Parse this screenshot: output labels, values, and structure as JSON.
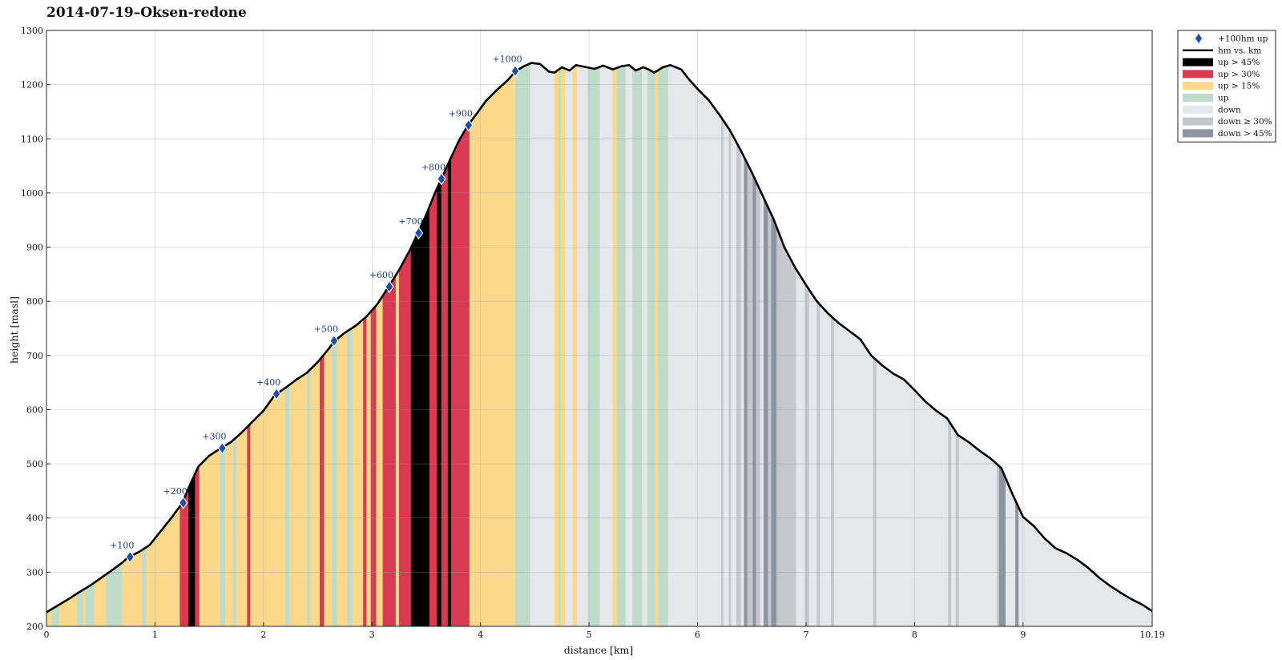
{
  "chart_data": {
    "type": "area",
    "title": "2014-07-19–Oksen-redone",
    "xlabel": "distance [km]",
    "ylabel": "height [masl]",
    "xlim": [
      0,
      10.19
    ],
    "ylim": [
      200,
      1300
    ],
    "x_ticks": [
      "0",
      "1",
      "2",
      "3",
      "4",
      "5",
      "6",
      "7",
      "8",
      "9",
      "10.19"
    ],
    "x_tick_values": [
      0,
      1,
      2,
      3,
      4,
      5,
      6,
      7,
      8,
      9,
      10.19
    ],
    "y_ticks": [
      "200",
      "300",
      "400",
      "500",
      "600",
      "700",
      "800",
      "900",
      "1000",
      "1100",
      "1200",
      "1300"
    ],
    "y_tick_values": [
      200,
      300,
      400,
      500,
      600,
      700,
      800,
      900,
      1000,
      1100,
      1200,
      1300
    ],
    "grid": true,
    "legend_position": "top-right outside",
    "colors": {
      "up45": "#000000",
      "up30": "#d93a52",
      "up15": "#fcd98a",
      "up": "#bfdccb",
      "down": "#e6e7eb",
      "down30": "#c5c7cd",
      "down45": "#8c93a1",
      "line": "#000000",
      "marker": "#1e4ea8",
      "annotation": "#1a3a8a"
    },
    "legend": [
      {
        "key": "marker",
        "label": "+100hm up"
      },
      {
        "key": "line",
        "label": "hm vs. km"
      },
      {
        "key": "up45",
        "label": "up > 45%"
      },
      {
        "key": "up30",
        "label": "up > 30%"
      },
      {
        "key": "up15",
        "label": "up > 15%"
      },
      {
        "key": "up",
        "label": "up"
      },
      {
        "key": "down",
        "label": "down"
      },
      {
        "key": "down30",
        "label": "down ≥ 30%"
      },
      {
        "key": "down45",
        "label": "down > 45%"
      }
    ],
    "profile": [
      [
        0.0,
        226
      ],
      [
        0.1,
        238
      ],
      [
        0.2,
        250
      ],
      [
        0.3,
        263
      ],
      [
        0.4,
        275
      ],
      [
        0.5,
        289
      ],
      [
        0.6,
        303
      ],
      [
        0.7,
        318
      ],
      [
        0.75,
        327
      ],
      [
        0.85,
        337
      ],
      [
        0.95,
        350
      ],
      [
        1.05,
        375
      ],
      [
        1.15,
        400
      ],
      [
        1.25,
        427
      ],
      [
        1.32,
        460
      ],
      [
        1.4,
        495
      ],
      [
        1.5,
        515
      ],
      [
        1.6,
        528
      ],
      [
        1.7,
        540
      ],
      [
        1.8,
        558
      ],
      [
        1.9,
        578
      ],
      [
        2.0,
        598
      ],
      [
        2.1,
        626
      ],
      [
        2.2,
        640
      ],
      [
        2.3,
        655
      ],
      [
        2.4,
        668
      ],
      [
        2.5,
        688
      ],
      [
        2.6,
        712
      ],
      [
        2.65,
        726
      ],
      [
        2.75,
        742
      ],
      [
        2.85,
        755
      ],
      [
        2.95,
        772
      ],
      [
        3.05,
        795
      ],
      [
        3.15,
        826
      ],
      [
        3.25,
        858
      ],
      [
        3.35,
        895
      ],
      [
        3.42,
        925
      ],
      [
        3.5,
        960
      ],
      [
        3.58,
        1000
      ],
      [
        3.64,
        1026
      ],
      [
        3.72,
        1062
      ],
      [
        3.8,
        1096
      ],
      [
        3.88,
        1124
      ],
      [
        3.96,
        1145
      ],
      [
        4.05,
        1170
      ],
      [
        4.15,
        1190
      ],
      [
        4.25,
        1208
      ],
      [
        4.32,
        1224
      ],
      [
        4.4,
        1234
      ],
      [
        4.47,
        1240
      ],
      [
        4.55,
        1238
      ],
      [
        4.63,
        1224
      ],
      [
        4.68,
        1222
      ],
      [
        4.75,
        1232
      ],
      [
        4.82,
        1226
      ],
      [
        4.88,
        1236
      ],
      [
        4.98,
        1232
      ],
      [
        5.05,
        1229
      ],
      [
        5.13,
        1235
      ],
      [
        5.22,
        1228
      ],
      [
        5.3,
        1234
      ],
      [
        5.37,
        1236
      ],
      [
        5.43,
        1226
      ],
      [
        5.5,
        1232
      ],
      [
        5.55,
        1228
      ],
      [
        5.6,
        1222
      ],
      [
        5.68,
        1232
      ],
      [
        5.75,
        1236
      ],
      [
        5.85,
        1228
      ],
      [
        5.92,
        1210
      ],
      [
        6.0,
        1192
      ],
      [
        6.1,
        1172
      ],
      [
        6.2,
        1145
      ],
      [
        6.3,
        1115
      ],
      [
        6.4,
        1078
      ],
      [
        6.5,
        1038
      ],
      [
        6.6,
        995
      ],
      [
        6.7,
        952
      ],
      [
        6.8,
        900
      ],
      [
        6.9,
        862
      ],
      [
        7.0,
        830
      ],
      [
        7.1,
        800
      ],
      [
        7.2,
        778
      ],
      [
        7.3,
        760
      ],
      [
        7.4,
        745
      ],
      [
        7.5,
        730
      ],
      [
        7.6,
        700
      ],
      [
        7.7,
        682
      ],
      [
        7.8,
        667
      ],
      [
        7.9,
        656
      ],
      [
        8.0,
        636
      ],
      [
        8.1,
        615
      ],
      [
        8.2,
        598
      ],
      [
        8.3,
        584
      ],
      [
        8.4,
        553
      ],
      [
        8.5,
        540
      ],
      [
        8.6,
        524
      ],
      [
        8.7,
        510
      ],
      [
        8.8,
        492
      ],
      [
        8.9,
        445
      ],
      [
        9.0,
        402
      ],
      [
        9.1,
        385
      ],
      [
        9.2,
        362
      ],
      [
        9.3,
        344
      ],
      [
        9.4,
        335
      ],
      [
        9.5,
        323
      ],
      [
        9.6,
        308
      ],
      [
        9.7,
        290
      ],
      [
        9.8,
        275
      ],
      [
        9.9,
        262
      ],
      [
        10.0,
        250
      ],
      [
        10.1,
        240
      ],
      [
        10.19,
        228
      ]
    ],
    "segments": [
      [
        0.0,
        0.05,
        "up15"
      ],
      [
        0.05,
        0.12,
        "up"
      ],
      [
        0.12,
        0.28,
        "up15"
      ],
      [
        0.28,
        0.34,
        "up"
      ],
      [
        0.34,
        0.36,
        "up15"
      ],
      [
        0.36,
        0.44,
        "up"
      ],
      [
        0.44,
        0.55,
        "up15"
      ],
      [
        0.55,
        0.7,
        "up"
      ],
      [
        0.7,
        0.88,
        "up15"
      ],
      [
        0.88,
        0.92,
        "up"
      ],
      [
        0.92,
        1.23,
        "up15"
      ],
      [
        1.23,
        1.31,
        "up30"
      ],
      [
        1.31,
        1.37,
        "up45"
      ],
      [
        1.37,
        1.41,
        "up30"
      ],
      [
        1.41,
        1.6,
        "up15"
      ],
      [
        1.6,
        1.65,
        "up"
      ],
      [
        1.65,
        1.72,
        "up15"
      ],
      [
        1.72,
        1.75,
        "up"
      ],
      [
        1.75,
        1.85,
        "up15"
      ],
      [
        1.85,
        1.88,
        "up30"
      ],
      [
        1.88,
        2.2,
        "up15"
      ],
      [
        2.2,
        2.24,
        "up"
      ],
      [
        2.24,
        2.4,
        "up15"
      ],
      [
        2.4,
        2.43,
        "up"
      ],
      [
        2.43,
        2.52,
        "up15"
      ],
      [
        2.52,
        2.56,
        "up30"
      ],
      [
        2.56,
        2.63,
        "up15"
      ],
      [
        2.63,
        2.68,
        "up"
      ],
      [
        2.68,
        2.77,
        "up15"
      ],
      [
        2.77,
        2.82,
        "up"
      ],
      [
        2.82,
        2.92,
        "up15"
      ],
      [
        2.92,
        2.95,
        "up30"
      ],
      [
        2.95,
        2.99,
        "up15"
      ],
      [
        2.99,
        3.04,
        "up30"
      ],
      [
        3.04,
        3.1,
        "up15"
      ],
      [
        3.1,
        3.22,
        "up30"
      ],
      [
        3.22,
        3.25,
        "up15"
      ],
      [
        3.25,
        3.36,
        "up30"
      ],
      [
        3.36,
        3.53,
        "up45"
      ],
      [
        3.53,
        3.6,
        "up30"
      ],
      [
        3.6,
        3.64,
        "up45"
      ],
      [
        3.64,
        3.7,
        "up30"
      ],
      [
        3.7,
        3.73,
        "up45"
      ],
      [
        3.73,
        3.81,
        "up30"
      ],
      [
        3.81,
        3.9,
        "up30"
      ],
      [
        3.9,
        4.32,
        "up15"
      ],
      [
        4.32,
        4.46,
        "up"
      ],
      [
        4.46,
        4.68,
        "down"
      ],
      [
        4.68,
        4.72,
        "up15"
      ],
      [
        4.72,
        4.74,
        "up"
      ],
      [
        4.74,
        4.78,
        "up15"
      ],
      [
        4.78,
        4.85,
        "down"
      ],
      [
        4.85,
        4.89,
        "up15"
      ],
      [
        4.89,
        4.99,
        "down"
      ],
      [
        4.99,
        5.1,
        "up"
      ],
      [
        5.1,
        5.22,
        "down"
      ],
      [
        5.22,
        5.26,
        "up15"
      ],
      [
        5.26,
        5.34,
        "up"
      ],
      [
        5.34,
        5.4,
        "down"
      ],
      [
        5.4,
        5.49,
        "up"
      ],
      [
        5.49,
        5.54,
        "down"
      ],
      [
        5.54,
        5.61,
        "up"
      ],
      [
        5.61,
        5.64,
        "up15"
      ],
      [
        5.64,
        5.73,
        "up"
      ],
      [
        5.73,
        6.22,
        "down"
      ],
      [
        6.22,
        6.24,
        "down30"
      ],
      [
        6.24,
        6.29,
        "down"
      ],
      [
        6.29,
        6.31,
        "down30"
      ],
      [
        6.31,
        6.36,
        "down"
      ],
      [
        6.36,
        6.4,
        "down30"
      ],
      [
        6.4,
        6.43,
        "down"
      ],
      [
        6.43,
        6.46,
        "down45"
      ],
      [
        6.46,
        6.51,
        "down30"
      ],
      [
        6.51,
        6.54,
        "down45"
      ],
      [
        6.54,
        6.58,
        "down30"
      ],
      [
        6.58,
        6.61,
        "down"
      ],
      [
        6.61,
        6.65,
        "down45"
      ],
      [
        6.65,
        6.68,
        "down30"
      ],
      [
        6.68,
        6.73,
        "down45"
      ],
      [
        6.73,
        6.78,
        "down30"
      ],
      [
        6.78,
        6.91,
        "down30"
      ],
      [
        6.91,
        6.99,
        "down"
      ],
      [
        6.99,
        7.03,
        "down30"
      ],
      [
        7.03,
        7.1,
        "down"
      ],
      [
        7.1,
        7.13,
        "down30"
      ],
      [
        7.13,
        7.23,
        "down"
      ],
      [
        7.23,
        7.26,
        "down30"
      ],
      [
        7.26,
        7.62,
        "down"
      ],
      [
        7.62,
        7.65,
        "down30"
      ],
      [
        7.65,
        8.31,
        "down"
      ],
      [
        8.31,
        8.34,
        "down30"
      ],
      [
        8.34,
        8.38,
        "down"
      ],
      [
        8.38,
        8.41,
        "down30"
      ],
      [
        8.41,
        8.76,
        "down"
      ],
      [
        8.76,
        8.78,
        "down30"
      ],
      [
        8.78,
        8.84,
        "down45"
      ],
      [
        8.84,
        8.93,
        "down"
      ],
      [
        8.93,
        8.96,
        "down45"
      ],
      [
        8.96,
        10.19,
        "down"
      ]
    ],
    "markers": [
      {
        "x": 0.77,
        "y": 328,
        "label": "+100"
      },
      {
        "x": 1.26,
        "y": 428,
        "label": "+200"
      },
      {
        "x": 1.62,
        "y": 529,
        "label": "+300"
      },
      {
        "x": 2.12,
        "y": 629,
        "label": "+400"
      },
      {
        "x": 2.65,
        "y": 727,
        "label": "+500"
      },
      {
        "x": 3.16,
        "y": 827,
        "label": "+600"
      },
      {
        "x": 3.43,
        "y": 926,
        "label": "+700"
      },
      {
        "x": 3.64,
        "y": 1026,
        "label": "+800"
      },
      {
        "x": 3.89,
        "y": 1125,
        "label": "+900"
      },
      {
        "x": 4.32,
        "y": 1225,
        "label": "+1000"
      }
    ]
  }
}
